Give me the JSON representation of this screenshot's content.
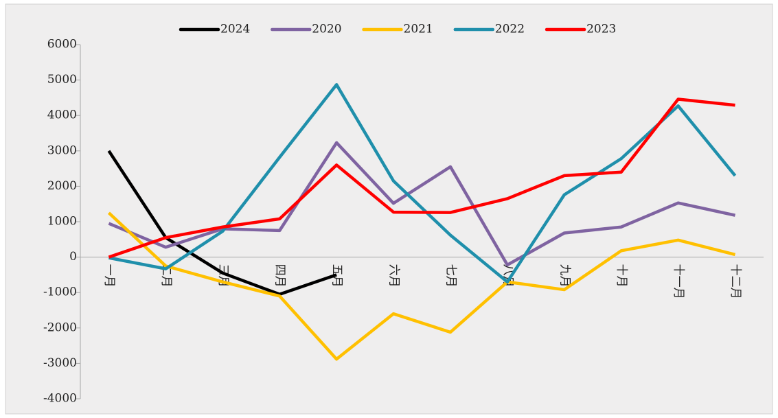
{
  "chart_data": {
    "type": "line",
    "categories": [
      "一月",
      "二月",
      "三月",
      "四月",
      "五月",
      "六月",
      "七月",
      "八月",
      "九月",
      "十月",
      "十一月",
      "十二月"
    ],
    "series": [
      {
        "name": "2024",
        "color": "#000000",
        "values": [
          3000,
          550,
          -450,
          -1050,
          -500,
          null,
          null,
          null,
          null,
          null,
          null,
          null
        ]
      },
      {
        "name": "2020",
        "color": "#7f63a1",
        "values": [
          950,
          280,
          800,
          750,
          3230,
          1520,
          2550,
          -220,
          680,
          850,
          1530,
          1180
        ]
      },
      {
        "name": "2021",
        "color": "#ffc000",
        "values": [
          1250,
          -250,
          -700,
          -1100,
          -2880,
          -1600,
          -2120,
          -700,
          -920,
          180,
          480,
          70
        ]
      },
      {
        "name": "2022",
        "color": "#1f8fab",
        "values": [
          -20,
          -330,
          730,
          2820,
          4870,
          2150,
          620,
          -700,
          1760,
          2780,
          4270,
          2300
        ]
      },
      {
        "name": "2023",
        "color": "#ff0000",
        "values": [
          0,
          550,
          850,
          1080,
          2600,
          1270,
          1260,
          1650,
          2300,
          2400,
          4460,
          4290
        ]
      }
    ],
    "ylim": [
      -4000,
      6000
    ],
    "yticks": [
      -4000,
      -3000,
      -2000,
      -1000,
      0,
      1000,
      2000,
      3000,
      4000,
      5000,
      6000
    ],
    "legend": "top"
  }
}
